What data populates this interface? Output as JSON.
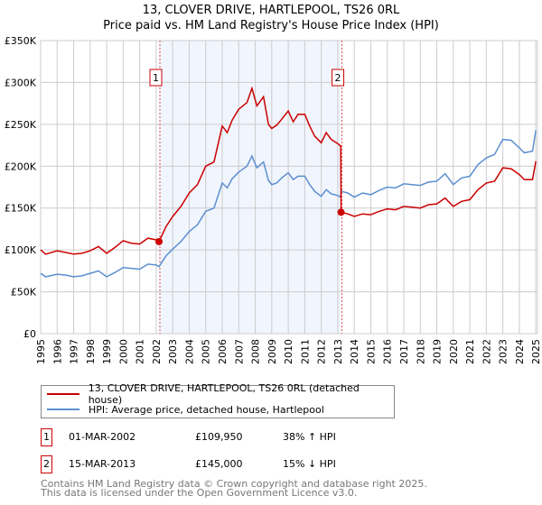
{
  "title": "13, CLOVER DRIVE, HARTLEPOOL, TS26 0RL",
  "subtitle": "Price paid vs. HM Land Registry's House Price Index (HPI)",
  "chart_data": {
    "type": "line",
    "xlim": [
      1995,
      2025.1
    ],
    "ylim": [
      0,
      350000
    ],
    "yticks": [
      {
        "v": 0,
        "label": "£0"
      },
      {
        "v": 50000,
        "label": "£50K"
      },
      {
        "v": 100000,
        "label": "£100K"
      },
      {
        "v": 150000,
        "label": "£150K"
      },
      {
        "v": 200000,
        "label": "£200K"
      },
      {
        "v": 250000,
        "label": "£250K"
      },
      {
        "v": 300000,
        "label": "£300K"
      },
      {
        "v": 350000,
        "label": "£350K"
      }
    ],
    "xticks": [
      "1995",
      "1996",
      "1997",
      "1998",
      "1999",
      "2000",
      "2001",
      "2002",
      "2003",
      "2004",
      "2005",
      "2006",
      "2007",
      "2008",
      "2009",
      "2010",
      "2011",
      "2012",
      "2013",
      "2014",
      "2015",
      "2016",
      "2017",
      "2018",
      "2019",
      "2020",
      "2021",
      "2022",
      "2023",
      "2024",
      "2025"
    ],
    "grid": true,
    "shaded_range": [
      2002.17,
      2013.2
    ],
    "series": [
      {
        "name": "13, CLOVER DRIVE, HARTLEPOOL, TS26 0RL (detached house)",
        "color": "#cc0000",
        "x": [
          1995,
          1995.3,
          1996,
          1996.5,
          1997,
          1997.5,
          1998,
          1998.5,
          1999,
          1999.5,
          2000,
          2000.5,
          2001,
          2001.5,
          2002,
          2002.17,
          2002.6,
          2003,
          2003.5,
          2004,
          2004.5,
          2005,
          2005.5,
          2006,
          2006.3,
          2006.6,
          2007,
          2007.5,
          2007.8,
          2008.1,
          2008.5,
          2008.8,
          2009,
          2009.3,
          2009.6,
          2010,
          2010.3,
          2010.6,
          2011,
          2011.3,
          2011.6,
          2012,
          2012.3,
          2012.6,
          2013,
          2013.18,
          2013.2,
          2013.6,
          2014,
          2014.5,
          2015,
          2015.5,
          2016,
          2016.5,
          2017,
          2017.5,
          2018,
          2018.5,
          2019,
          2019.5,
          2020,
          2020.5,
          2021,
          2021.5,
          2022,
          2022.5,
          2023,
          2023.5,
          2024,
          2024.3,
          2024.8,
          2025
        ],
        "y": [
          100000,
          95000,
          99000,
          97000,
          95000,
          96000,
          99000,
          104000,
          96000,
          103000,
          111000,
          108000,
          107000,
          114000,
          112000,
          109950,
          128000,
          140000,
          152000,
          168000,
          178000,
          200000,
          205000,
          248000,
          240000,
          255000,
          268000,
          276000,
          293000,
          272000,
          283000,
          250000,
          245000,
          249000,
          256000,
          266000,
          253000,
          262000,
          262000,
          248000,
          236000,
          228000,
          240000,
          232000,
          227000,
          224000,
          145000,
          143000,
          140000,
          143000,
          142000,
          146000,
          149000,
          148000,
          152000,
          151000,
          150000,
          154000,
          155000,
          162000,
          152000,
          158000,
          160000,
          172000,
          180000,
          182000,
          198000,
          197000,
          190000,
          184000,
          184000,
          206000
        ]
      },
      {
        "name": "HPI: Average price, detached house, Hartlepool",
        "color": "#5b8fd0",
        "x": [
          1995,
          1995.3,
          1996,
          1996.5,
          1997,
          1997.5,
          1998,
          1998.5,
          1999,
          1999.5,
          2000,
          2000.5,
          2001,
          2001.5,
          2002,
          2002.17,
          2002.6,
          2003,
          2003.5,
          2004,
          2004.5,
          2005,
          2005.5,
          2006,
          2006.3,
          2006.6,
          2007,
          2007.5,
          2007.8,
          2008.1,
          2008.5,
          2008.8,
          2009,
          2009.3,
          2009.6,
          2010,
          2010.3,
          2010.6,
          2011,
          2011.3,
          2011.6,
          2012,
          2012.3,
          2012.6,
          2013,
          2013.18,
          2013.2,
          2013.6,
          2014,
          2014.5,
          2015,
          2015.5,
          2016,
          2016.5,
          2017,
          2017.5,
          2018,
          2018.5,
          2019,
          2019.5,
          2020,
          2020.5,
          2021,
          2021.5,
          2022,
          2022.5,
          2023,
          2023.5,
          2024,
          2024.3,
          2024.8,
          2025
        ],
        "y": [
          72000,
          68000,
          71000,
          70000,
          68000,
          69000,
          72000,
          75000,
          68000,
          73000,
          79000,
          78000,
          77000,
          83000,
          82000,
          80000,
          93000,
          101000,
          110000,
          122000,
          130000,
          146000,
          150000,
          180000,
          174000,
          185000,
          193000,
          200000,
          212000,
          198000,
          205000,
          183000,
          178000,
          180000,
          186000,
          192000,
          184000,
          188000,
          188000,
          178000,
          170000,
          164000,
          172000,
          167000,
          165000,
          163000,
          170000,
          168000,
          163000,
          168000,
          166000,
          171000,
          175000,
          174000,
          179000,
          178000,
          177000,
          181000,
          182000,
          191000,
          178000,
          186000,
          188000,
          202000,
          210000,
          214000,
          232000,
          231000,
          222000,
          216000,
          218000,
          243000
        ]
      }
    ],
    "markers": [
      {
        "label": "1",
        "x": 2002.17,
        "y": 109950
      },
      {
        "label": "2",
        "x": 2013.2,
        "y": 145000
      }
    ]
  },
  "legend": {
    "items": [
      "13, CLOVER DRIVE, HARTLEPOOL, TS26 0RL (detached house)",
      "HPI: Average price, detached house, Hartlepool"
    ]
  },
  "transactions": [
    {
      "num": "1",
      "date": "01-MAR-2002",
      "price": "£109,950",
      "hpi": "38% ↑ HPI"
    },
    {
      "num": "2",
      "date": "15-MAR-2013",
      "price": "£145,000",
      "hpi": "15% ↓ HPI"
    }
  ],
  "footer": [
    "Contains HM Land Registry data © Crown copyright and database right 2025.",
    "This data is licensed under the Open Government Licence v3.0."
  ]
}
